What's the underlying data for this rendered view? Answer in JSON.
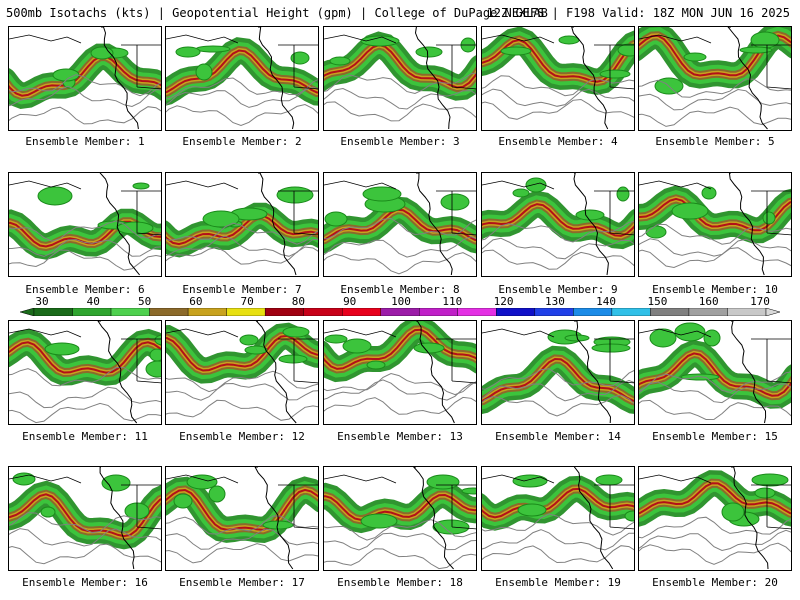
{
  "header": {
    "left_text": "500mb Isotachs (kts) | Geopotential Height (gpm) | College of DuPage NEXLAB",
    "right_text": "12Z GEFS | F198 Valid: 18Z MON JUN 16 2025"
  },
  "colorbar": {
    "tick_labels": [
      "30",
      "40",
      "50",
      "60",
      "70",
      "80",
      "90",
      "100",
      "110",
      "120",
      "130",
      "140",
      "150",
      "160",
      "170"
    ],
    "colors": [
      "#1a6b1a",
      "#2fa52f",
      "#4ed14e",
      "#8c6a2a",
      "#c8a21e",
      "#e8e010",
      "#a00010",
      "#c80018",
      "#e8001c",
      "#9c1ca8",
      "#c020c8",
      "#e430e4",
      "#1010c8",
      "#2040e8",
      "#1c8ce8",
      "#30c0e8",
      "#808080",
      "#a0a0a0",
      "#c8c8c8"
    ]
  },
  "members": [
    {
      "label": "Ensemble Member: 1"
    },
    {
      "label": "Ensemble Member: 2"
    },
    {
      "label": "Ensemble Member: 3"
    },
    {
      "label": "Ensemble Member: 4"
    },
    {
      "label": "Ensemble Member: 5"
    },
    {
      "label": "Ensemble Member: 6"
    },
    {
      "label": "Ensemble Member: 7"
    },
    {
      "label": "Ensemble Member: 8"
    },
    {
      "label": "Ensemble Member: 9"
    },
    {
      "label": "Ensemble Member: 10"
    },
    {
      "label": "Ensemble Member: 11"
    },
    {
      "label": "Ensemble Member: 12"
    },
    {
      "label": "Ensemble Member: 13"
    },
    {
      "label": "Ensemble Member: 14"
    },
    {
      "label": "Ensemble Member: 15"
    },
    {
      "label": "Ensemble Member: 16"
    },
    {
      "label": "Ensemble Member: 17"
    },
    {
      "label": "Ensemble Member: 18"
    },
    {
      "label": "Ensemble Member: 19"
    },
    {
      "label": "Ensemble Member: 20"
    }
  ]
}
